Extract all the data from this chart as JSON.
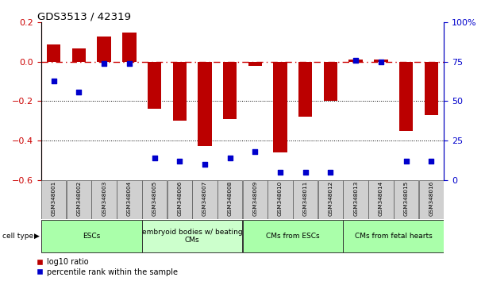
{
  "title": "GDS3513 / 42319",
  "samples": [
    "GSM348001",
    "GSM348002",
    "GSM348003",
    "GSM348004",
    "GSM348005",
    "GSM348006",
    "GSM348007",
    "GSM348008",
    "GSM348009",
    "GSM348010",
    "GSM348011",
    "GSM348012",
    "GSM348013",
    "GSM348014",
    "GSM348015",
    "GSM348016"
  ],
  "log10_ratio": [
    0.09,
    0.07,
    0.13,
    0.15,
    -0.24,
    -0.3,
    -0.43,
    -0.29,
    -0.02,
    -0.46,
    -0.28,
    -0.2,
    0.01,
    0.01,
    -0.35,
    -0.27
  ],
  "pct_rank": [
    63,
    56,
    74,
    74,
    14,
    12,
    10,
    14,
    18,
    5,
    5,
    5,
    76,
    75,
    12,
    12
  ],
  "cell_type_groups": [
    {
      "label": "ESCs",
      "start": 0,
      "end": 3,
      "color": "#aaffaa"
    },
    {
      "label": "embryoid bodies w/ beating\nCMs",
      "start": 4,
      "end": 7,
      "color": "#ccffcc"
    },
    {
      "label": "CMs from ESCs",
      "start": 8,
      "end": 11,
      "color": "#aaffaa"
    },
    {
      "label": "CMs from fetal hearts",
      "start": 12,
      "end": 15,
      "color": "#aaffaa"
    }
  ],
  "bar_color": "#bb0000",
  "dot_color": "#0000cc",
  "ref_line_color": "#cc0000",
  "grid_color": "#000000",
  "ylim_left": [
    -0.6,
    0.2
  ],
  "ylim_right": [
    0,
    100
  ],
  "yticks_left": [
    -0.6,
    -0.4,
    -0.2,
    0.0,
    0.2
  ],
  "yticks_right": [
    0,
    25,
    50,
    75,
    100
  ],
  "ytick_labels_right": [
    "0",
    "25",
    "50",
    "75",
    "100%"
  ]
}
